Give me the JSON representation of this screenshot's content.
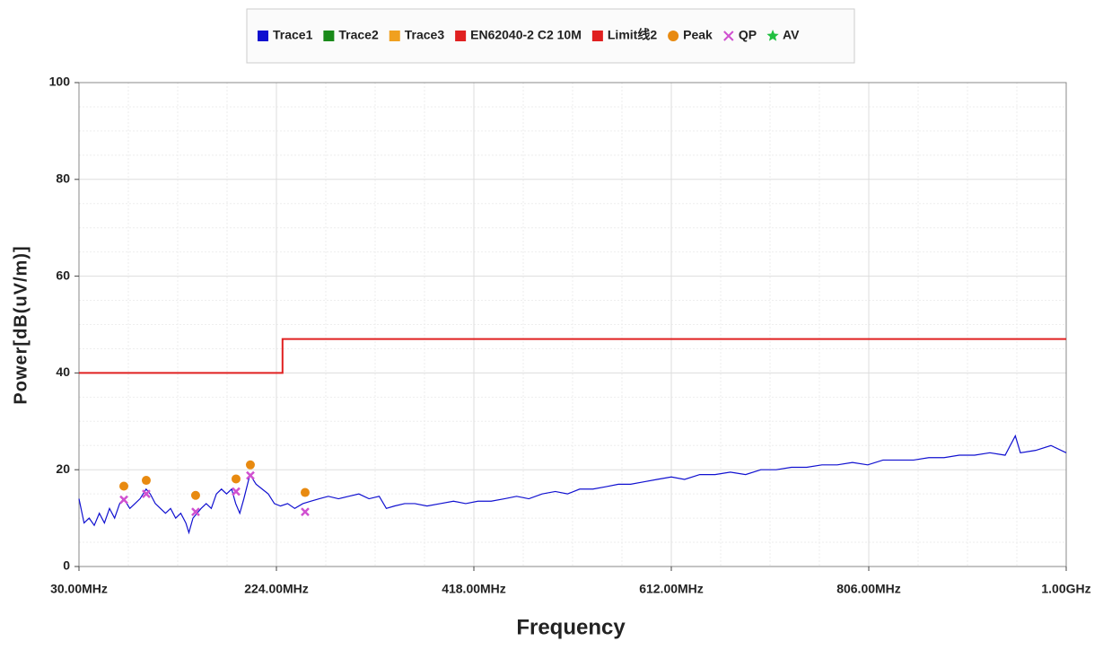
{
  "chart_data": {
    "type": "line",
    "xlabel": "Frequency",
    "ylabel": "Power[dB(uV/m)]",
    "xlim": [
      30,
      1000
    ],
    "ylim": [
      0,
      100
    ],
    "xticks": [
      {
        "value": 30,
        "label": "30.00MHz"
      },
      {
        "value": 224,
        "label": "224.00MHz"
      },
      {
        "value": 418,
        "label": "418.00MHz"
      },
      {
        "value": 612,
        "label": "612.00MHz"
      },
      {
        "value": 806,
        "label": "806.00MHz"
      },
      {
        "value": 1000,
        "label": "1.00GHz"
      }
    ],
    "yticks": [
      0,
      20,
      40,
      60,
      80,
      100
    ],
    "grid": true,
    "legend": "top",
    "series": [
      {
        "name": "Trace1",
        "color": "#1010d0",
        "marker": "line",
        "x": [
          30,
          35,
          40,
          45,
          50,
          55,
          60,
          65,
          70,
          74,
          80,
          85,
          90,
          96,
          100,
          105,
          110,
          115,
          120,
          125,
          130,
          135,
          138,
          142,
          146,
          150,
          155,
          160,
          165,
          170,
          175,
          180,
          184,
          188,
          192,
          198,
          204,
          210,
          216,
          222,
          228,
          235,
          242,
          250,
          258,
          266,
          275,
          285,
          295,
          305,
          315,
          325,
          332,
          340,
          350,
          360,
          372,
          385,
          398,
          410,
          422,
          435,
          448,
          460,
          472,
          485,
          498,
          510,
          522,
          535,
          548,
          560,
          572,
          585,
          598,
          612,
          625,
          640,
          655,
          670,
          685,
          700,
          715,
          730,
          745,
          760,
          775,
          790,
          805,
          820,
          835,
          850,
          865,
          880,
          895,
          910,
          925,
          940,
          950,
          955,
          970,
          985,
          1000
        ],
        "values": [
          14,
          9,
          10,
          8.5,
          11,
          9,
          12,
          10,
          13,
          14,
          12,
          13,
          14,
          16,
          15,
          13,
          12,
          11,
          12,
          10,
          11,
          9,
          7,
          10,
          11,
          12,
          13,
          12,
          15,
          16,
          15,
          16,
          13,
          11,
          14,
          19,
          17,
          16,
          15,
          13,
          12.5,
          13,
          12,
          13,
          13.5,
          14,
          14.5,
          14,
          14.5,
          15,
          14,
          14.5,
          12,
          12.5,
          13,
          13,
          12.5,
          13,
          13.5,
          13,
          13.5,
          13.5,
          14,
          14.5,
          14,
          15,
          15.5,
          15,
          16,
          16,
          16.5,
          17,
          17,
          17.5,
          18,
          18.5,
          18,
          19,
          19,
          19.5,
          19,
          20,
          20,
          20.5,
          20.5,
          21,
          21,
          21.5,
          21,
          22,
          22,
          22,
          22.5,
          22.5,
          23,
          23,
          23.5,
          23,
          27,
          23.5,
          24,
          25,
          23.5
        ]
      },
      {
        "name": "Trace2",
        "color": "#1a8a1a",
        "marker": "line",
        "x": [],
        "values": []
      },
      {
        "name": "Trace3",
        "color": "#f0a020",
        "marker": "line",
        "x": [],
        "values": []
      },
      {
        "name": "EN62040-2 C2 10M",
        "color": "#e02020",
        "marker": "step",
        "x": [
          30,
          230,
          230,
          1000
        ],
        "values": [
          40,
          40,
          47,
          47
        ]
      },
      {
        "name": "Limit线2",
        "color": "#e02020",
        "marker": "line",
        "x": [],
        "values": []
      },
      {
        "name": "Peak",
        "color": "#e88a10",
        "marker": "circle",
        "x": [
          74.1,
          96.1,
          144.6,
          184.3,
          198.4,
          252.2
        ],
        "values": [
          16.6,
          17.8,
          14.7,
          18.1,
          21.0,
          15.3
        ]
      },
      {
        "name": "QP",
        "color": "#d050d0",
        "marker": "cross",
        "x": [
          74.1,
          96.1,
          144.6,
          184.3,
          198.4,
          252.2
        ],
        "values": [
          13.8,
          15.0,
          11.3,
          15.5,
          18.8,
          11.3
        ]
      },
      {
        "name": "AV",
        "color": "#20c040",
        "marker": "star",
        "x": [],
        "values": []
      }
    ]
  }
}
